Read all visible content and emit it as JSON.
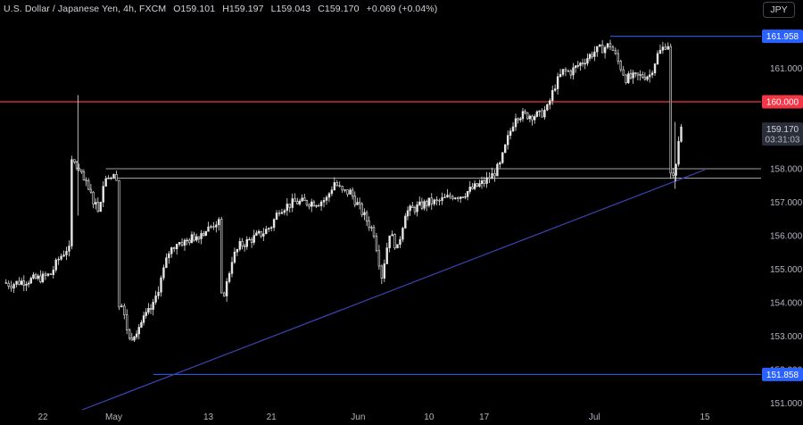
{
  "header": {
    "symbol_title": "U.S. Dollar / Japanese Yen, 4h, FXCM",
    "open": "O159.101",
    "high": "H159.197",
    "low": "L159.043",
    "close": "C159.170",
    "change": "+0.069 (+0.04%)",
    "currency_button": "JPY"
  },
  "colors": {
    "background": "#000000",
    "candle": "#e6e6e6",
    "resistance_line": "#f23645",
    "level_line": "#2962ff",
    "trendline": "#3a45b5",
    "support_band": "#a0a0a0"
  },
  "chart_data": {
    "type": "candlestick",
    "title": "U.S. Dollar / Japanese Yen, 4h, FXCM",
    "x_tick_labels": [
      "22",
      "May",
      "13",
      "21",
      "Jun",
      "10",
      "17",
      "Jul",
      "15"
    ],
    "y_tick_labels": [
      "151.000",
      "152.000",
      "153.000",
      "154.000",
      "155.000",
      "156.000",
      "157.000",
      "158.000",
      "161.000"
    ],
    "ylim": [
      150.75,
      162.8
    ],
    "price_tags": {
      "high_level": "161.958",
      "resistance": "160.000",
      "last_price": "159.170",
      "countdown": "03:31:03",
      "low_level": "151.858"
    },
    "levels": [
      {
        "kind": "high",
        "value": 161.958
      },
      {
        "kind": "resistance",
        "value": 160.0
      },
      {
        "kind": "support_band_top",
        "value": 158.0
      },
      {
        "kind": "support_band_bottom",
        "value": 157.72
      },
      {
        "kind": "low",
        "value": 151.858
      }
    ],
    "trendline": {
      "from": {
        "date": "Apr 27",
        "price": 150.8
      },
      "to": {
        "date": "Jul 15",
        "price": 157.97
      }
    },
    "series": [
      {
        "values": [
          [
            "Apr 17",
            154.6
          ],
          [
            "Apr 18",
            154.55
          ],
          [
            "Apr 19",
            154.62
          ],
          [
            "Apr 22",
            154.75
          ],
          [
            "Apr 23",
            154.85
          ],
          [
            "Apr 24",
            155.3
          ],
          [
            "Apr 25",
            155.6
          ],
          [
            "Apr 26",
            158.2
          ],
          [
            "Apr 29",
            156.8
          ],
          [
            "Apr 30",
            157.8
          ],
          [
            "May 1",
            157.75
          ],
          [
            "May 2",
            153.9
          ],
          [
            "May 3",
            152.9
          ],
          [
            "May 6",
            153.9
          ],
          [
            "May 7",
            154.7
          ],
          [
            "May 8",
            155.5
          ],
          [
            "May 9",
            155.8
          ],
          [
            "May 10",
            155.8
          ],
          [
            "May 13",
            156.2
          ],
          [
            "May 14",
            156.4
          ],
          [
            "May 15",
            154.2
          ],
          [
            "May 16",
            155.3
          ],
          [
            "May 17",
            155.7
          ],
          [
            "May 20",
            156.1
          ],
          [
            "May 21",
            156.3
          ],
          [
            "May 22",
            156.8
          ],
          [
            "May 23",
            156.9
          ],
          [
            "May 24",
            157.0
          ],
          [
            "May 27",
            157.0
          ],
          [
            "May 28",
            157.1
          ],
          [
            "May 29",
            157.6
          ],
          [
            "May 30",
            157.3
          ],
          [
            "May 31",
            157.3
          ],
          [
            "Jun 3",
            156.1
          ],
          [
            "Jun 4",
            154.8
          ],
          [
            "Jun 5",
            156.1
          ],
          [
            "Jun 6",
            155.6
          ],
          [
            "Jun 7",
            156.7
          ],
          [
            "Jun 10",
            157.0
          ],
          [
            "Jun 11",
            157.0
          ],
          [
            "Jun 12",
            157.1
          ],
          [
            "Jun 13",
            157.2
          ],
          [
            "Jun 14",
            157.2
          ],
          [
            "Jun 17",
            157.6
          ],
          [
            "Jun 18",
            157.8
          ],
          [
            "Jun 19",
            158.1
          ],
          [
            "Jun 20",
            158.9
          ],
          [
            "Jun 21",
            159.6
          ],
          [
            "Jun 24",
            159.6
          ],
          [
            "Jun 25",
            159.8
          ],
          [
            "Jun 26",
            160.5
          ],
          [
            "Jun 27",
            160.9
          ],
          [
            "Jun 28",
            160.9
          ],
          [
            "Jul 1",
            161.5
          ],
          [
            "Jul 2",
            161.6
          ],
          [
            "Jul 3",
            161.7
          ],
          [
            "Jul 4",
            161.2
          ],
          [
            "Jul 5",
            160.7
          ],
          [
            "Jul 8",
            160.8
          ],
          [
            "Jul 9",
            161.4
          ],
          [
            "Jul 10",
            161.7
          ],
          [
            "Jul 11",
            157.8
          ],
          [
            "Jul 12",
            159.17
          ]
        ]
      }
    ]
  }
}
